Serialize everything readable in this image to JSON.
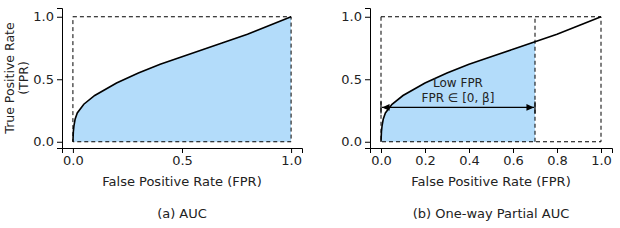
{
  "chart_data": [
    {
      "type": "area",
      "title": "(a) AUC",
      "x_label": "False Positive Rate (FPR)",
      "y_label": "True Positive Rate (TPR)",
      "x": [
        0,
        0.002,
        0.005,
        0.01,
        0.02,
        0.05,
        0.1,
        0.2,
        0.3,
        0.4,
        0.5,
        0.6,
        0.7,
        0.8,
        0.9,
        1.0
      ],
      "values": [
        0,
        0.08,
        0.13,
        0.18,
        0.23,
        0.3,
        0.37,
        0.47,
        0.55,
        0.62,
        0.68,
        0.74,
        0.8,
        0.86,
        0.93,
        1.0
      ],
      "color": "#b3dcfa",
      "xlim": [
        -0.05,
        1.05
      ],
      "ylim": [
        -0.05,
        1.07
      ],
      "xticks": [
        {
          "value": 0,
          "label": "0.0"
        },
        {
          "value": 0.5,
          "label": "0.5"
        },
        {
          "value": 1,
          "label": "1.0"
        }
      ],
      "yticks": [
        {
          "value": 0,
          "label": "0.0"
        },
        {
          "value": 0.5,
          "label": "0.5"
        },
        {
          "value": 1,
          "label": "1.0"
        }
      ],
      "shaded_range": [
        0,
        1
      ]
    },
    {
      "type": "area",
      "title": "(b) One-way Partial AUC",
      "x_label": "False Positive Rate (FPR)",
      "x": [
        0,
        0.002,
        0.005,
        0.01,
        0.02,
        0.05,
        0.1,
        0.2,
        0.3,
        0.4,
        0.5,
        0.6,
        0.7,
        0.8,
        0.9,
        1.0
      ],
      "values": [
        0,
        0.08,
        0.13,
        0.18,
        0.23,
        0.3,
        0.37,
        0.47,
        0.55,
        0.62,
        0.68,
        0.74,
        0.8,
        0.86,
        0.93,
        1.0
      ],
      "color": "#b3dcfa",
      "xlim": [
        -0.05,
        1.05
      ],
      "ylim": [
        -0.05,
        1.07
      ],
      "xticks": [
        {
          "value": 0,
          "label": "0.0"
        },
        {
          "value": 0.2,
          "label": "0.2"
        },
        {
          "value": 0.4,
          "label": "0.4"
        },
        {
          "value": 0.6,
          "label": "0.6"
        },
        {
          "value": 0.8,
          "label": "0.8"
        },
        {
          "value": 1,
          "label": "1.0"
        }
      ],
      "yticks": [
        {
          "value": 0,
          "label": "0.0"
        },
        {
          "value": 0.5,
          "label": "0.5"
        },
        {
          "value": 1,
          "label": "1.0"
        }
      ],
      "shaded_range": [
        0,
        0.7
      ],
      "annotations": [
        "Low FPR",
        "FPR ∈ [0, β]"
      ]
    }
  ]
}
